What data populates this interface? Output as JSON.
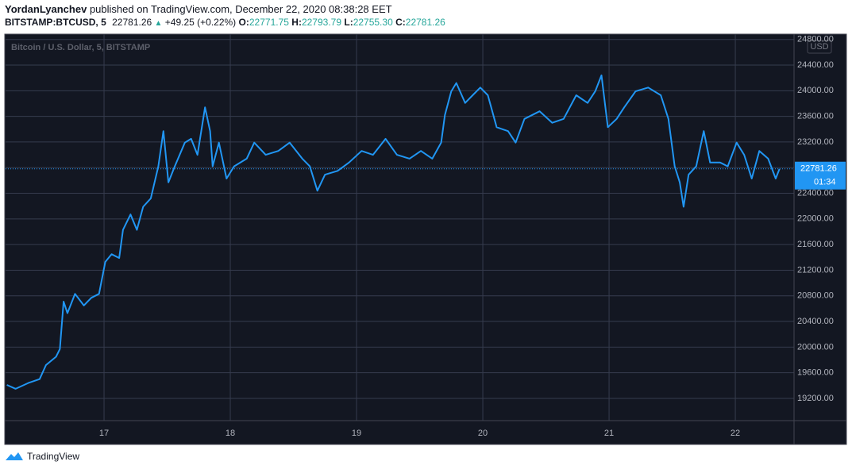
{
  "header": {
    "author": "YordanLyanchev",
    "published": "published on TradingView.com, December 22, 2020 08:38:28 EET",
    "symbol": "BITSTAMP:BTCUSD, 5",
    "last": "22781.26",
    "change": "+49.25 (+0.22%)",
    "open_label": "O:",
    "open": "22771.75",
    "high_label": "H:",
    "high": "22793.79",
    "low_label": "L:",
    "low": "22755.30",
    "close_label": "C:",
    "close": "22781.26"
  },
  "footer": {
    "brand": "TradingView"
  },
  "chart_data": {
    "type": "line",
    "currency": "USD",
    "x": [
      16.23,
      16.3,
      16.4,
      16.49,
      16.54,
      16.62,
      16.65,
      16.68,
      16.71,
      16.77,
      16.84,
      16.9,
      16.96,
      17.01,
      17.06,
      17.12,
      17.15,
      17.21,
      17.26,
      17.31,
      17.37,
      17.43,
      17.47,
      17.51,
      17.56,
      17.64,
      17.69,
      17.74,
      17.8,
      17.84,
      17.86,
      17.91,
      17.97,
      18.03,
      18.13,
      18.19,
      18.28,
      18.38,
      18.47,
      18.57,
      18.63,
      18.69,
      18.75,
      18.85,
      18.94,
      19.04,
      19.13,
      19.23,
      19.32,
      19.42,
      19.51,
      19.6,
      19.67,
      19.7,
      19.75,
      19.79,
      19.86,
      19.92,
      19.98,
      20.04,
      20.11,
      20.2,
      20.26,
      20.33,
      20.45,
      20.55,
      20.64,
      20.74,
      20.83,
      20.89,
      20.94,
      20.99,
      21.06,
      21.12,
      21.21,
      21.31,
      21.41,
      21.47,
      21.52,
      21.56,
      21.59,
      21.63,
      21.69,
      21.75,
      21.8,
      21.88,
      21.94,
      22.01,
      22.07,
      22.13,
      22.19,
      22.26,
      22.32,
      22.35
    ],
    "series": [
      {
        "name": "Bitcoin / U.S. Dollar, 5, BITSTAMP",
        "color": "#2196f3",
        "values": [
          19410,
          19350,
          19440,
          19500,
          19720,
          19850,
          19970,
          20710,
          20530,
          20830,
          20650,
          20770,
          20830,
          21330,
          21450,
          21390,
          21830,
          22070,
          21830,
          22190,
          22320,
          22820,
          23370,
          22570,
          22820,
          23190,
          23250,
          23000,
          23740,
          23370,
          22820,
          23190,
          22630,
          22820,
          22940,
          23190,
          23000,
          23060,
          23190,
          22940,
          22820,
          22440,
          22690,
          22750,
          22880,
          23060,
          23000,
          23250,
          23000,
          22940,
          23060,
          22940,
          23190,
          23620,
          23990,
          24120,
          23810,
          23930,
          24050,
          23930,
          23430,
          23370,
          23190,
          23560,
          23680,
          23500,
          23560,
          23930,
          23810,
          23990,
          24240,
          23430,
          23560,
          23740,
          23990,
          24050,
          23930,
          23560,
          22820,
          22570,
          22190,
          22690,
          22820,
          23370,
          22880,
          22880,
          22820,
          23190,
          23000,
          22630,
          23060,
          22940,
          22630,
          22781.26
        ]
      }
    ],
    "xlim": [
      16.22,
      22.465
    ],
    "xticks": [
      17,
      18,
      19,
      20,
      21,
      22
    ],
    "ylim": [
      18853,
      24883
    ],
    "yticks": [
      {
        "value": 19200,
        "label": "19200.00"
      },
      {
        "value": 19600,
        "label": "19600.00"
      },
      {
        "value": 20000,
        "label": "20000.00"
      },
      {
        "value": 20400,
        "label": "20400.00"
      },
      {
        "value": 20800,
        "label": "20800.00"
      },
      {
        "value": 21200,
        "label": "21200.00"
      },
      {
        "value": 21600,
        "label": "21600.00"
      },
      {
        "value": 22000,
        "label": "22000.00"
      },
      {
        "value": 22400,
        "label": "22400.00"
      },
      {
        "value": 22800,
        "label": "22800.00"
      },
      {
        "value": 23200,
        "label": "23200.00"
      },
      {
        "value": 23600,
        "label": "23600.00"
      },
      {
        "value": 24000,
        "label": "24000.00"
      },
      {
        "value": 24400,
        "label": "24400.00"
      },
      {
        "value": 24800,
        "label": "24800.00"
      }
    ],
    "grid": true,
    "last_price": 22781.26,
    "countdown": "01:34"
  }
}
